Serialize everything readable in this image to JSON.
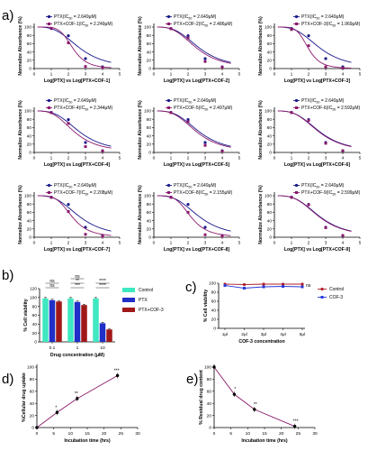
{
  "panel_letters": [
    "a)",
    "b)",
    "c)",
    "d)",
    "e)"
  ],
  "colors": {
    "ptx": "#1a1a8c",
    "cof": "#8b1a6b",
    "bar_control": "#3ee8c0",
    "bar_ptx": "#1f2fc7",
    "bar_ptxcof": "#a01818",
    "line_control": "#b0202a",
    "line_cof3": "#2a3bd8",
    "uptake": "#8b1a6b"
  },
  "chart_data": [
    {
      "panel": "a",
      "index": 1,
      "type": "line",
      "xlabel": "Log[PTX] vs Log[PTX+COF-1]",
      "ylabel": "Normalize Absorbance (%)",
      "xlim": [
        0,
        5
      ],
      "ylim": [
        0,
        100
      ],
      "xticks": [
        "0",
        "1",
        "2",
        "3",
        "4",
        "5"
      ],
      "yticks": [
        "0",
        "20",
        "40",
        "60",
        "80",
        "100"
      ],
      "legend": [
        "PTX(IC50 = 2.649μM)",
        "PTX+COF-1(IC50 = 2.249μM)"
      ],
      "legend_parts": [
        [
          "PTX(IC",
          "50",
          " = 2.649μM)"
        ],
        [
          "PTX+COF-1(IC",
          "50",
          " = 2.249μM)"
        ]
      ],
      "series": [
        {
          "name": "PTX",
          "logIC50": 0.423,
          "hill": 1.5,
          "x": [
            1,
            2,
            3,
            4
          ],
          "y": [
            96.5,
            79,
            24,
            4
          ]
        },
        {
          "name": "PTX+COF-1",
          "logIC50": 0.352,
          "hill": 2.5,
          "x": [
            1,
            2,
            3,
            4
          ],
          "y": [
            97,
            62,
            5,
            2
          ]
        }
      ]
    },
    {
      "panel": "a",
      "index": 2,
      "type": "line",
      "xlabel": "Log[PTX] vs Log[PTX+COF-2]",
      "ylabel": "Normalize Absorbance (%)",
      "xlim": [
        0,
        5
      ],
      "ylim": [
        0,
        100
      ],
      "xticks": [
        "0",
        "1",
        "2",
        "3",
        "4",
        "5"
      ],
      "yticks": [
        "0",
        "20",
        "40",
        "60",
        "80",
        "100"
      ],
      "legend": [
        "PTX(IC50 = 2.649μM)",
        "PTX+COF-2(IC50 = 2.486μM)"
      ],
      "legend_parts": [
        [
          "PTX(IC",
          "50",
          " = 2.649μM)"
        ],
        [
          "PTX+COF-2(IC",
          "50",
          " = 2.486μM)"
        ]
      ],
      "series": [
        {
          "name": "PTX",
          "logIC50": 0.423,
          "hill": 1.5,
          "x": [
            1,
            2,
            3,
            4
          ],
          "y": [
            96.5,
            79,
            24,
            4
          ]
        },
        {
          "name": "PTX+COF-2",
          "logIC50": 0.396,
          "hill": 1.5,
          "x": [
            1,
            2,
            3,
            4
          ],
          "y": [
            96,
            74,
            17,
            3
          ]
        }
      ]
    },
    {
      "panel": "a",
      "index": 3,
      "type": "line",
      "xlabel": "Log[PTX] vs Log[PTX+COF-3]",
      "ylabel": "Normalize Absorbance (%)",
      "xlim": [
        0,
        5
      ],
      "ylim": [
        0,
        100
      ],
      "xticks": [
        "0",
        "1",
        "2",
        "3",
        "4",
        "5"
      ],
      "yticks": [
        "0",
        "20",
        "40",
        "60",
        "80",
        "100"
      ],
      "legend": [
        "PTX(IC50 = 2.649μM)",
        "PTX+COF-3(IC50 = 1.969μM)"
      ],
      "legend_parts": [
        [
          "PTX(IC",
          "50",
          " = 2.649μM)"
        ],
        [
          "PTX+COF-3(IC",
          "50",
          " = 1.969μM)"
        ]
      ],
      "series": [
        {
          "name": "PTX",
          "logIC50": 0.423,
          "hill": 1.5,
          "x": [
            1,
            2,
            3,
            4
          ],
          "y": [
            96.5,
            79,
            24,
            4
          ]
        },
        {
          "name": "PTX+COF-3",
          "logIC50": 0.294,
          "hill": 2.5,
          "x": [
            1,
            2,
            3,
            4
          ],
          "y": [
            94,
            55,
            4,
            1
          ]
        }
      ]
    },
    {
      "panel": "a",
      "index": 4,
      "type": "line",
      "xlabel": "Log[PTX] vs Log[PTX+COF-4]",
      "ylabel": "Normalize Absorbance (%)",
      "xlim": [
        0,
        5
      ],
      "ylim": [
        0,
        100
      ],
      "xticks": [
        "0",
        "1",
        "2",
        "3",
        "4",
        "5"
      ],
      "yticks": [
        "0",
        "20",
        "40",
        "60",
        "80",
        "100"
      ],
      "legend": [
        "PTX(IC50 = 2.649μM)",
        "PTX+COF-4(IC50 = 2.344μM)"
      ],
      "legend_parts": [
        [
          "PTX(IC",
          "50",
          " = 2.649μM)"
        ],
        [
          "PTX+COF-4(IC",
          "50",
          " = 2.344μM)"
        ]
      ],
      "series": [
        {
          "name": "PTX",
          "logIC50": 0.423,
          "hill": 1.5,
          "x": [
            1,
            2,
            3,
            4
          ],
          "y": [
            96.5,
            79,
            24,
            4
          ]
        },
        {
          "name": "PTX+COF-4",
          "logIC50": 0.37,
          "hill": 1.5,
          "x": [
            1,
            2,
            3,
            4
          ],
          "y": [
            96,
            70,
            14,
            3
          ]
        }
      ]
    },
    {
      "panel": "a",
      "index": 5,
      "type": "line",
      "xlabel": "Log[PTX] vs Log[PTX+COF-5]",
      "ylabel": "Normalize Absorbance (%)",
      "xlim": [
        0,
        5
      ],
      "ylim": [
        0,
        100
      ],
      "xticks": [
        "0",
        "1",
        "2",
        "3",
        "4",
        "5"
      ],
      "yticks": [
        "0",
        "20",
        "40",
        "60",
        "80",
        "100"
      ],
      "legend": [
        "PTX(IC50 = 2.649μM)",
        "PTX+COF-5(IC50 = 2.497μM)"
      ],
      "legend_parts": [
        [
          "PTX(IC",
          "50",
          " = 2.649μM)"
        ],
        [
          "PTX+COF-5(IC",
          "50",
          " = 2.497μM)"
        ]
      ],
      "series": [
        {
          "name": "PTX",
          "logIC50": 0.423,
          "hill": 1.5,
          "x": [
            1,
            2,
            3,
            4
          ],
          "y": [
            96.5,
            79,
            24,
            4
          ]
        },
        {
          "name": "PTX+COF-5",
          "logIC50": 0.397,
          "hill": 1.5,
          "x": [
            1,
            2,
            3,
            4
          ],
          "y": [
            96,
            74,
            17,
            3
          ]
        }
      ]
    },
    {
      "panel": "a",
      "index": 6,
      "type": "line",
      "xlabel": "Log[PTX] vs Log[PTX+COF-6]",
      "ylabel": "Normalize Absorbance (%)",
      "xlim": [
        0,
        5
      ],
      "ylim": [
        0,
        100
      ],
      "xticks": [
        "0",
        "1",
        "2",
        "3",
        "4",
        "5"
      ],
      "yticks": [
        "0",
        "20",
        "40",
        "60",
        "80",
        "100"
      ],
      "legend": [
        "PTX(IC50 = 2.649μM)",
        "PTX+COF-6(IC50 = 2.592μM)"
      ],
      "legend_parts": [
        [
          "PTX(IC",
          "50",
          " = 2.649μM)"
        ],
        [
          "PTX+COF-6(IC",
          "50",
          " = 2.592μM)"
        ]
      ],
      "series": [
        {
          "name": "PTX",
          "logIC50": 0.423,
          "hill": 1.5,
          "x": [
            1,
            2,
            3,
            4
          ],
          "y": [
            96.5,
            79,
            24,
            4
          ]
        },
        {
          "name": "PTX+COF-6",
          "logIC50": 0.414,
          "hill": 1.5,
          "x": [
            1,
            2,
            3,
            4
          ],
          "y": [
            96,
            77,
            22,
            4
          ]
        }
      ]
    },
    {
      "panel": "a",
      "index": 7,
      "type": "line",
      "xlabel": "Log[PTX] vs Log[PTX+COF-7]",
      "ylabel": "Normalize Absorbance (%)",
      "xlim": [
        0,
        5
      ],
      "ylim": [
        0,
        100
      ],
      "xticks": [
        "0",
        "1",
        "2",
        "3",
        "4",
        "5"
      ],
      "yticks": [
        "0",
        "20",
        "40",
        "60",
        "80",
        "100"
      ],
      "legend": [
        "PTX(IC50 = 2.649μM)",
        "PTX+COF-7(IC50 = 2.208μM)"
      ],
      "legend_parts": [
        [
          "PTX(IC",
          "50",
          " = 2.649μM)"
        ],
        [
          "PTX+COF-7(IC",
          "50",
          " = 2.208μM)"
        ]
      ],
      "series": [
        {
          "name": "PTX",
          "logIC50": 0.423,
          "hill": 1.5,
          "x": [
            1,
            2,
            3,
            4
          ],
          "y": [
            96.5,
            79,
            24,
            4
          ]
        },
        {
          "name": "PTX+COF-7",
          "logIC50": 0.344,
          "hill": 2.0,
          "x": [
            1,
            2,
            3,
            4
          ],
          "y": [
            96,
            62,
            7,
            2
          ]
        }
      ]
    },
    {
      "panel": "a",
      "index": 8,
      "type": "line",
      "xlabel": "Log[PTX] vs Log[PTX+COF-8]",
      "ylabel": "Normalize Absorbance (%)",
      "xlim": [
        0,
        5
      ],
      "ylim": [
        0,
        100
      ],
      "xticks": [
        "0",
        "1",
        "2",
        "3",
        "4",
        "5"
      ],
      "yticks": [
        "0",
        "20",
        "40",
        "60",
        "80",
        "100"
      ],
      "legend": [
        "PTX(IC50 = 2.649μM)",
        "PTX+COF-8(IC50 = 2.155μM)"
      ],
      "legend_parts": [
        [
          "PTX(IC",
          "50",
          " = 2.649μM)"
        ],
        [
          "PTX+COF-8(IC",
          "50",
          " = 2.155μM)"
        ]
      ],
      "series": [
        {
          "name": "PTX",
          "logIC50": 0.423,
          "hill": 1.5,
          "x": [
            1,
            2,
            3,
            4
          ],
          "y": [
            96.5,
            79,
            24,
            4
          ]
        },
        {
          "name": "PTX+COF-8",
          "logIC50": 0.333,
          "hill": 2.0,
          "x": [
            1,
            2,
            3,
            4
          ],
          "y": [
            96,
            60,
            6,
            2
          ]
        }
      ]
    },
    {
      "panel": "a",
      "index": 9,
      "type": "line",
      "xlabel": "Log[PTX] vs Log[PTX+COF-9]",
      "ylabel": "Normalize Absorbance (%)",
      "xlim": [
        0,
        5
      ],
      "ylim": [
        0,
        100
      ],
      "xticks": [
        "0",
        "1",
        "2",
        "3",
        "4",
        "5"
      ],
      "yticks": [
        "0",
        "20",
        "40",
        "60",
        "80",
        "100"
      ],
      "legend": [
        "PTX(IC50 = 2.649μM)",
        "PTX+COF-9(IC50 = 2.599μM)"
      ],
      "legend_parts": [
        [
          "PTX(IC",
          "50",
          " = 2.649μM)"
        ],
        [
          "PTX+COF-9(IC",
          "50",
          " = 2.599μM)"
        ]
      ],
      "series": [
        {
          "name": "PTX",
          "logIC50": 0.423,
          "hill": 1.5,
          "x": [
            1,
            2,
            3,
            4
          ],
          "y": [
            96.5,
            79,
            24,
            4
          ]
        },
        {
          "name": "PTX+COF-9",
          "logIC50": 0.415,
          "hill": 1.5,
          "x": [
            1,
            2,
            3,
            4
          ],
          "y": [
            96,
            78,
            23,
            4
          ]
        }
      ]
    },
    {
      "panel": "b",
      "type": "bar",
      "xlabel": "Drug concentration (μM)",
      "ylabel": "% Cell viability",
      "categories": [
        "0.1",
        "1",
        "10"
      ],
      "ylim": [
        0,
        120
      ],
      "yticks": [
        "0",
        "20",
        "40",
        "60",
        "80",
        "100",
        "120"
      ],
      "legend": [
        "Control",
        "PTX",
        "PTX+COF-3"
      ],
      "series": [
        {
          "name": "Control",
          "values": [
            98,
            98,
            98
          ],
          "err": [
            2,
            2,
            2
          ]
        },
        {
          "name": "PTX",
          "values": [
            94,
            90,
            42
          ],
          "err": [
            2,
            2,
            2
          ]
        },
        {
          "name": "PTX+COF-3",
          "values": [
            91,
            83,
            28
          ],
          "err": [
            1.5,
            1.5,
            1
          ]
        }
      ],
      "significance": [
        {
          "category": "0.1",
          "pairs": [
            "ns",
            "ns"
          ]
        },
        {
          "category": "1",
          "pairs": [
            "***",
            "**",
            "ns"
          ]
        },
        {
          "category": "10",
          "pairs": [
            "****",
            "****"
          ]
        }
      ]
    },
    {
      "panel": "c",
      "type": "line",
      "xlabel": "COF-3 concentration",
      "ylabel": "% Cell viability",
      "categories": [
        "1μl",
        "2μl",
        "3μl",
        "4μl",
        "5μl"
      ],
      "ylim": [
        0,
        100
      ],
      "yticks": [
        "0",
        "20",
        "40",
        "60",
        "80",
        "100"
      ],
      "legend": [
        "Control",
        "COF-3"
      ],
      "annotation": "ns",
      "series": [
        {
          "name": "Control",
          "values": [
            98,
            97,
            98,
            98,
            98
          ]
        },
        {
          "name": "COF-3",
          "values": [
            95,
            89,
            92,
            93,
            92
          ]
        }
      ]
    },
    {
      "panel": "d",
      "type": "line",
      "xlabel": "Incubation time (hrs)",
      "ylabel": "%Cellular drug uptake",
      "xlim": [
        0,
        30
      ],
      "ylim": [
        0,
        100
      ],
      "xticks": [
        "0",
        "5",
        "10",
        "15",
        "20",
        "25",
        "30"
      ],
      "yticks": [
        "0",
        "20",
        "40",
        "60",
        "80",
        "100"
      ],
      "series": [
        {
          "x": [
            0,
            6,
            12,
            24
          ],
          "y": [
            0,
            25,
            48,
            86
          ],
          "sig": [
            "",
            "*",
            "**",
            "***"
          ]
        }
      ]
    },
    {
      "panel": "e",
      "type": "line",
      "xlabel": "Incubation time (hrs)",
      "ylabel": "% Residual drug content",
      "xlim": [
        0,
        30
      ],
      "ylim": [
        0,
        100
      ],
      "xticks": [
        "0",
        "5",
        "10",
        "15",
        "20",
        "25",
        "30"
      ],
      "yticks": [
        "0",
        "20",
        "40",
        "60",
        "80",
        "100"
      ],
      "series": [
        {
          "x": [
            0,
            6,
            12,
            24
          ],
          "y": [
            100,
            55,
            30,
            2
          ],
          "sig": [
            "",
            "*",
            "**",
            "***"
          ]
        }
      ]
    }
  ]
}
